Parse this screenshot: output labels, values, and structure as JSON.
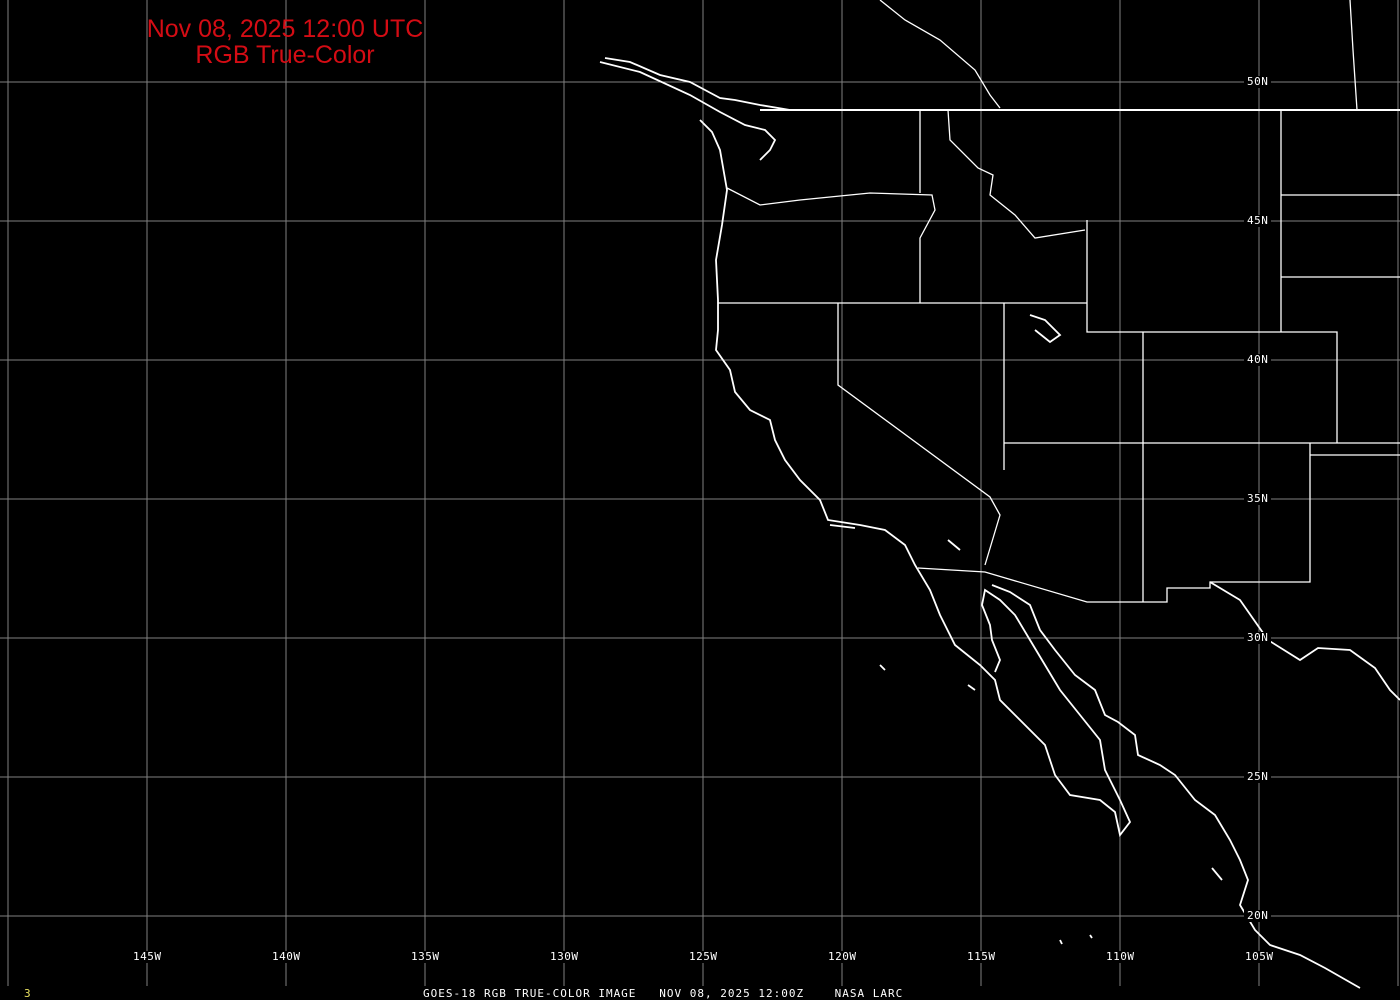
{
  "title": {
    "line1": "Nov 08, 2025 12:00 UTC",
    "line2": "RGB True-Color"
  },
  "footer": {
    "frame": "3",
    "caption": "GOES-18 RGB TRUE-COLOR IMAGE   NOV 08, 2025 12:00Z    NASA LARC"
  },
  "grid": {
    "longitude_labels": [
      "145W",
      "140W",
      "135W",
      "130W",
      "125W",
      "120W",
      "115W",
      "110W",
      "105W"
    ],
    "latitude_labels": [
      "50N",
      "45N",
      "40N",
      "35N",
      "30N",
      "25N",
      "20N"
    ],
    "longitudes": [
      -150,
      -145,
      -140,
      -135,
      -130,
      -125,
      -120,
      -115,
      -110,
      -105,
      -100
    ],
    "latitudes": [
      50,
      45,
      40,
      35,
      30,
      25,
      20
    ]
  },
  "colors": {
    "background": "#000000",
    "grid": "#808080",
    "coastline": "#ffffff",
    "title": "#d40c14",
    "frame_number": "#e8e060"
  }
}
